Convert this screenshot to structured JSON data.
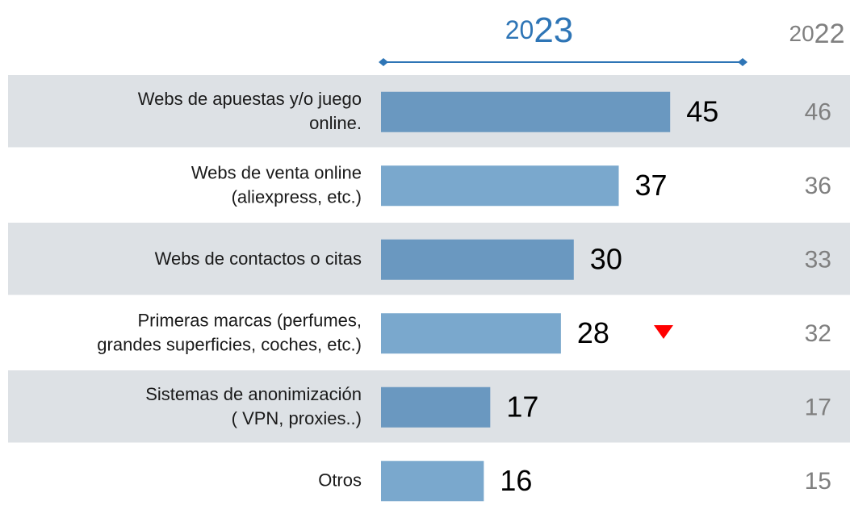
{
  "chart_data": {
    "type": "bar",
    "orientation": "horizontal",
    "categories": [
      "Webs de apuestas y/o juego\nonline.",
      "Webs de venta online\n(aliexpress, etc.)",
      "Webs de contactos o citas",
      "Primeras marcas (perfumes,\ngrandes superficies, coches, etc.)",
      "Sistemas de anonimización\n( VPN, proxies..)",
      "Otros"
    ],
    "series": [
      {
        "name": "2023",
        "color": "#2e75b6",
        "colors": [
          "#6a98c0",
          "#7aa8cd",
          "#6a98c0",
          "#7aa8cd",
          "#6a98c0",
          "#7aa8cd"
        ],
        "values": [
          45,
          37,
          30,
          28,
          17,
          16
        ]
      },
      {
        "name": "2022",
        "color": "#808080",
        "values": [
          46,
          36,
          33,
          32,
          17,
          15
        ]
      }
    ]
  }
}
